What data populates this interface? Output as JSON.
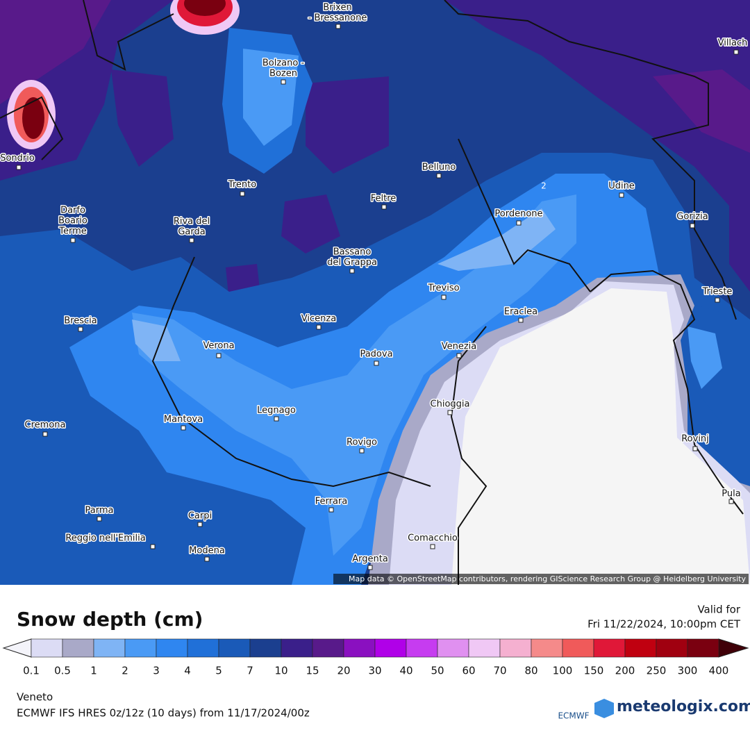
{
  "map": {
    "cities": [
      {
        "lines": [
          "Brixen",
          "- Bressanone"
        ]
      },
      {
        "lines": [
          "Villach"
        ]
      },
      {
        "lines": [
          "Bolzano -",
          "Bozen"
        ]
      },
      {
        "lines": [
          "Sondrio"
        ]
      },
      {
        "lines": [
          "Trento"
        ]
      },
      {
        "lines": [
          "Belluno"
        ]
      },
      {
        "lines": [
          "Udine"
        ]
      },
      {
        "lines": [
          "Feltre"
        ]
      },
      {
        "lines": [
          "Darfo",
          "Boario",
          "Terme"
        ]
      },
      {
        "lines": [
          "Riva del",
          "Garda"
        ]
      },
      {
        "lines": [
          "Pordenone"
        ]
      },
      {
        "lines": [
          "Gorizia"
        ]
      },
      {
        "lines": [
          "Bassano",
          "del Grappa"
        ]
      },
      {
        "lines": [
          "Treviso"
        ]
      },
      {
        "lines": [
          "Trieste"
        ]
      },
      {
        "lines": [
          "Eraclea"
        ]
      },
      {
        "lines": [
          "Brescia"
        ]
      },
      {
        "lines": [
          "Vicenza"
        ]
      },
      {
        "lines": [
          "Verona"
        ]
      },
      {
        "lines": [
          "Venezia"
        ]
      },
      {
        "lines": [
          "Padova"
        ]
      },
      {
        "lines": [
          "Chioggia"
        ]
      },
      {
        "lines": [
          "Legnago"
        ]
      },
      {
        "lines": [
          "Cremona"
        ]
      },
      {
        "lines": [
          "Mantova"
        ]
      },
      {
        "lines": [
          "Rovinj"
        ]
      },
      {
        "lines": [
          "Rovigo"
        ]
      },
      {
        "lines": [
          "Ferrara"
        ]
      },
      {
        "lines": [
          "Pula"
        ]
      },
      {
        "lines": [
          "Parma"
        ]
      },
      {
        "lines": [
          "Carpi"
        ]
      },
      {
        "lines": [
          "Reggio nell'Emilia"
        ]
      },
      {
        "lines": [
          "Modena"
        ]
      },
      {
        "lines": [
          "Comacchio"
        ]
      },
      {
        "lines": [
          "Argenta"
        ]
      }
    ],
    "contour_labels": [
      "2"
    ],
    "attribution": "Map data © OpenStreetMap contributors, rendering GIScience Research Group @ Heidelberg University"
  },
  "header": {
    "title": "Snow depth (cm)",
    "valid_label": "Valid for",
    "valid_time": "Fri 11/22/2024, 10:00pm CET"
  },
  "legend": {
    "ticks": [
      0.1,
      0.5,
      1,
      2,
      3,
      4,
      5,
      7,
      10,
      15,
      20,
      30,
      40,
      50,
      60,
      70,
      80,
      100,
      150,
      200,
      250,
      300,
      400
    ],
    "colors": [
      "#dcdcf5",
      "#a9a9c8",
      "#7fb4f5",
      "#4a9af5",
      "#2f86f0",
      "#2070d8",
      "#1a5ab8",
      "#1b3f8f",
      "#3a1f8a",
      "#581a8a",
      "#8a10c0",
      "#b000e8",
      "#c63cf0",
      "#e090f0",
      "#f0c8f5",
      "#f5b0d0",
      "#f58a8a",
      "#f05a5a",
      "#e01838",
      "#c00010",
      "#a00010",
      "#7a0010"
    ],
    "below_color": "#f4f4fa",
    "above_color": "#400008"
  },
  "footer": {
    "region": "Veneto",
    "model": "ECMWF IFS HRES 0z/12z (10 days) from 11/17/2024/00z",
    "ecmwf": "ECMWF",
    "brand": "meteologix.com"
  }
}
